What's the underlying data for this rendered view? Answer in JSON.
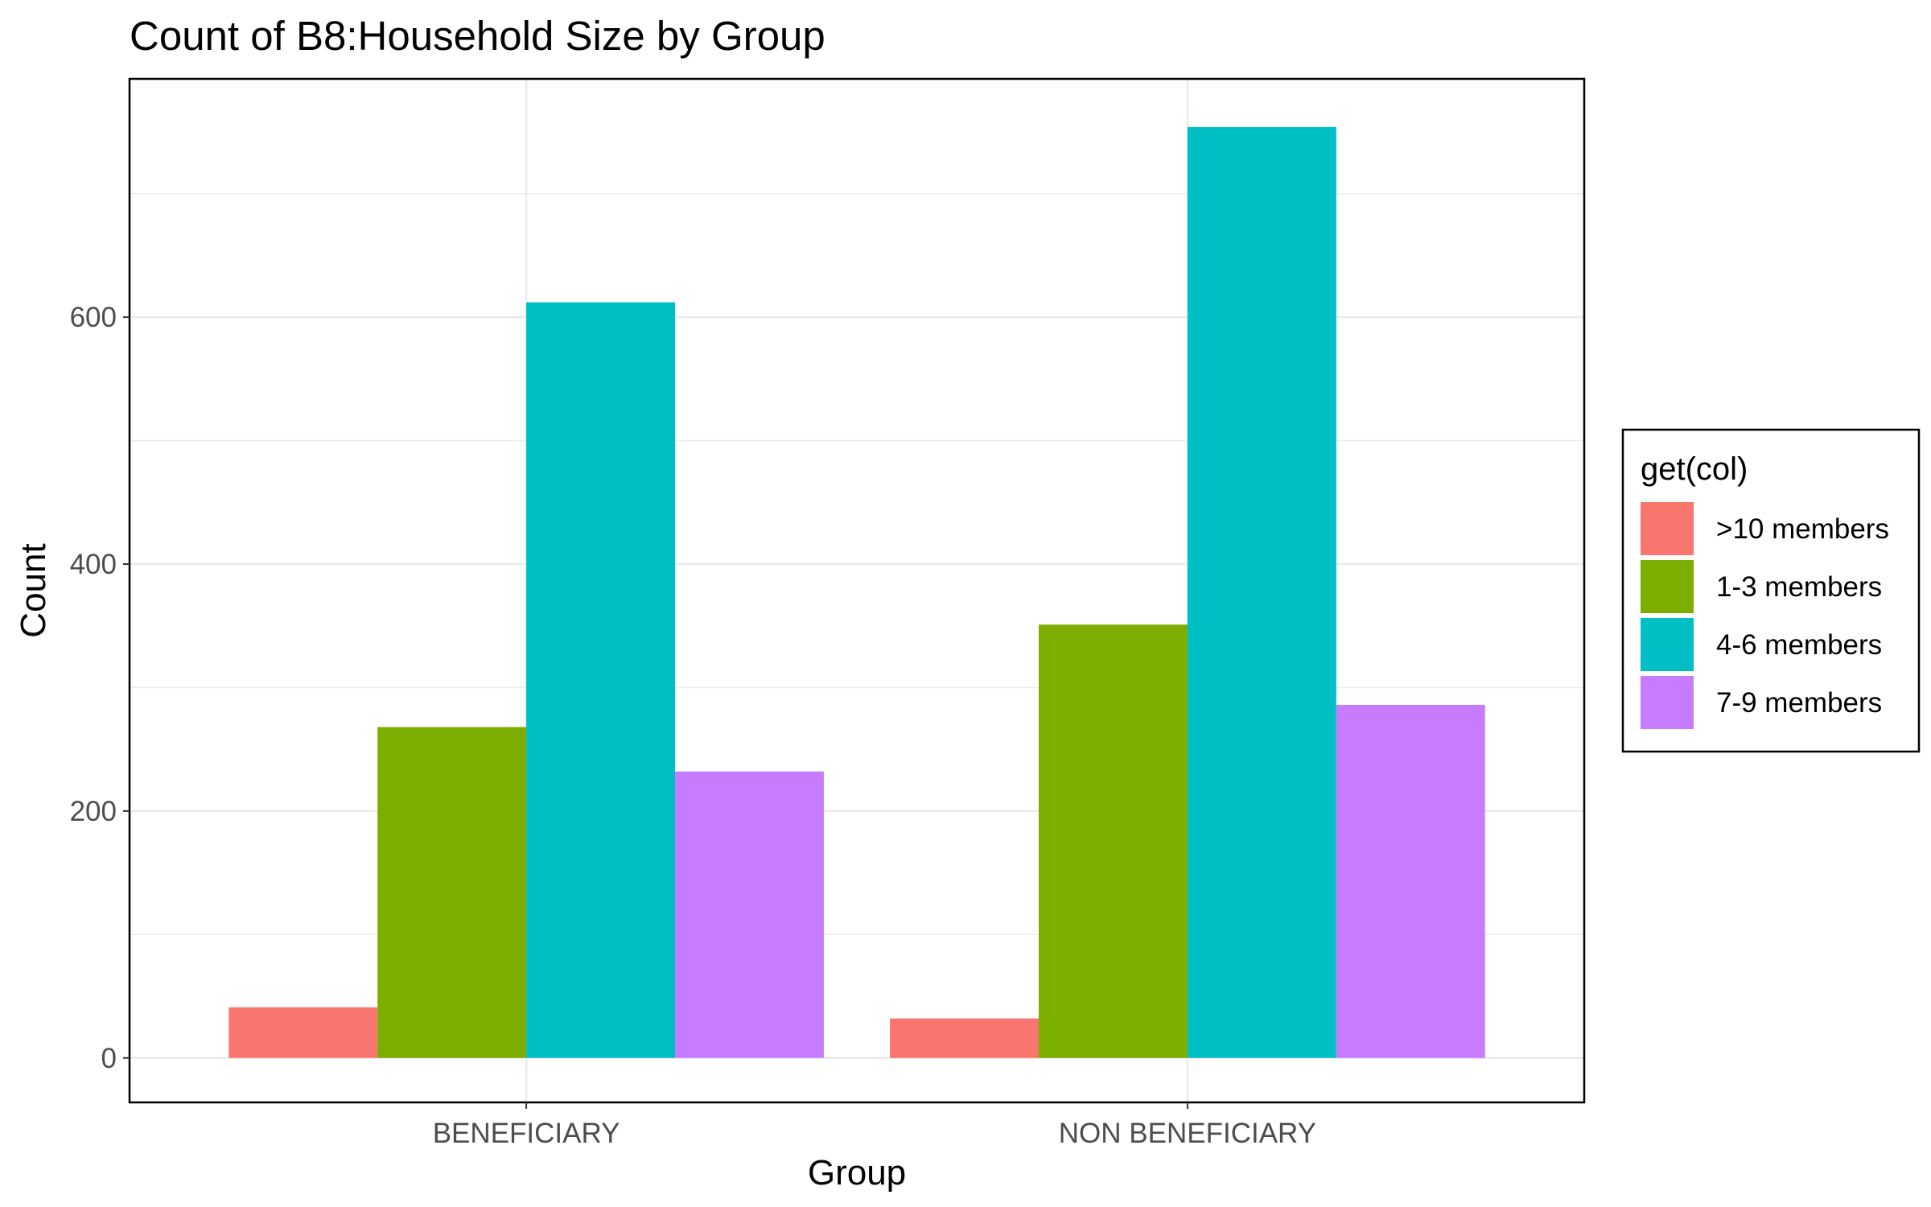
{
  "chart_data": {
    "type": "bar",
    "title": "Count of B8:Household Size by Group",
    "xlabel": "Group",
    "ylabel": "Count",
    "categories": [
      "BENEFICIARY",
      "NON BENEFICIARY"
    ],
    "series": [
      {
        "name": ">10 members",
        "values": [
          41,
          32
        ],
        "color": "#F8766D"
      },
      {
        "name": "1-3 members",
        "values": [
          268,
          351
        ],
        "color": "#7CAE00"
      },
      {
        "name": "4-6 members",
        "values": [
          612,
          754
        ],
        "color": "#00BFC4"
      },
      {
        "name": "7-9 members",
        "values": [
          232,
          286
        ],
        "color": "#C77CFF"
      }
    ],
    "ylim": [
      -36,
      793
    ],
    "yticks": [
      0,
      200,
      400,
      600
    ],
    "grid": true,
    "legend": {
      "title": "get(col)",
      "position": "right"
    }
  }
}
